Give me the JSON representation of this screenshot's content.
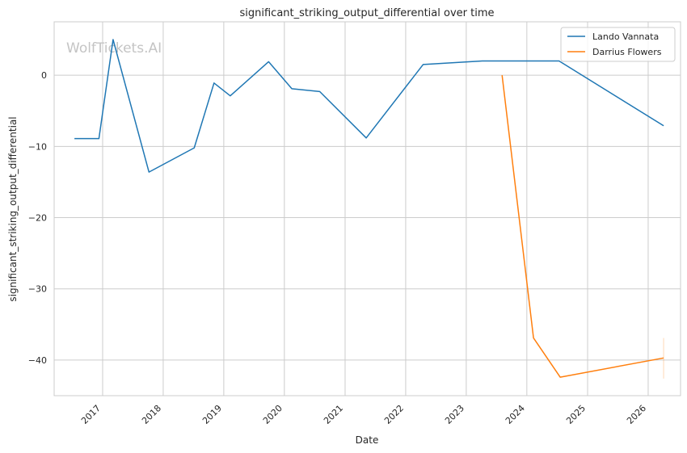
{
  "chart_data": {
    "type": "line",
    "title": "significant_striking_output_differential over time",
    "xlabel": "Date",
    "ylabel": "significant_striking_output_differential",
    "watermark": "WolfTickets.AI",
    "x_type": "date",
    "xlim": [
      "2016-03-15",
      "2026-07-15"
    ],
    "ylim": [
      -45,
      7.5
    ],
    "x_ticks": [
      "2017",
      "2018",
      "2019",
      "2020",
      "2021",
      "2022",
      "2023",
      "2024",
      "2025",
      "2026"
    ],
    "x_tick_dates": [
      "2017-01-01",
      "2018-01-01",
      "2019-01-01",
      "2020-01-01",
      "2021-01-01",
      "2022-01-01",
      "2023-01-01",
      "2024-01-01",
      "2025-01-01",
      "2026-01-01"
    ],
    "y_ticks": [
      0,
      -10,
      -20,
      -30,
      -40
    ],
    "y_tick_labels": [
      "0",
      "−10",
      "−20",
      "−30",
      "−40"
    ],
    "grid": true,
    "legend": "top-right",
    "series": [
      {
        "name": "Lando Vannata",
        "color": "#1f77b4",
        "points": [
          {
            "x": "2016-07-15",
            "y": -8.9
          },
          {
            "x": "2016-12-10",
            "y": -8.9
          },
          {
            "x": "2017-03-05",
            "y": 5.0
          },
          {
            "x": "2017-10-07",
            "y": -13.6
          },
          {
            "x": "2018-07-07",
            "y": -10.2
          },
          {
            "x": "2018-11-03",
            "y": -1.1
          },
          {
            "x": "2019-02-09",
            "y": -2.9
          },
          {
            "x": "2019-09-28",
            "y": 1.9
          },
          {
            "x": "2020-02-15",
            "y": -1.9
          },
          {
            "x": "2020-08-01",
            "y": -2.3
          },
          {
            "x": "2021-05-08",
            "y": -8.8
          },
          {
            "x": "2022-04-16",
            "y": 1.5
          },
          {
            "x": "2023-04-08",
            "y": 2.0
          },
          {
            "x": "2024-07-13",
            "y": 2.0
          },
          {
            "x": "2026-04-04",
            "y": -7.1
          }
        ]
      },
      {
        "name": "Darrius Flowers",
        "color": "#ff7f0e",
        "points": [
          {
            "x": "2023-08-05",
            "y": 0.0
          },
          {
            "x": "2024-02-10",
            "y": -36.9
          },
          {
            "x": "2024-07-20",
            "y": -42.4
          },
          {
            "x": "2026-04-04",
            "y": -39.7
          }
        ]
      }
    ]
  }
}
